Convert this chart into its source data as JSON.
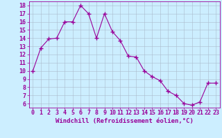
{
  "x": [
    0,
    1,
    2,
    3,
    4,
    5,
    6,
    7,
    8,
    9,
    10,
    11,
    12,
    13,
    14,
    15,
    16,
    17,
    18,
    19,
    20,
    21,
    22,
    23
  ],
  "y": [
    10,
    12.8,
    13.9,
    14.0,
    16.0,
    16.0,
    18.0,
    17.0,
    14.0,
    17.0,
    14.8,
    13.7,
    11.8,
    11.7,
    10.0,
    9.3,
    8.8,
    7.5,
    7.0,
    6.0,
    5.8,
    6.2,
    8.5,
    8.5
  ],
  "line_color": "#990099",
  "marker": "+",
  "marker_size": 4,
  "bg_color": "#cceeff",
  "grid_color": "#aabbcc",
  "xlabel": "Windchill (Refroidissement éolien,°C)",
  "xlabel_fontsize": 6.5,
  "tick_fontsize": 6,
  "yticks": [
    6,
    7,
    8,
    9,
    10,
    11,
    12,
    13,
    14,
    15,
    16,
    17,
    18
  ],
  "xticks": [
    0,
    1,
    2,
    3,
    4,
    5,
    6,
    7,
    8,
    9,
    10,
    11,
    12,
    13,
    14,
    15,
    16,
    17,
    18,
    19,
    20,
    21,
    22,
    23
  ],
  "ylim": [
    5.5,
    18.5
  ],
  "xlim": [
    -0.5,
    23.5
  ]
}
